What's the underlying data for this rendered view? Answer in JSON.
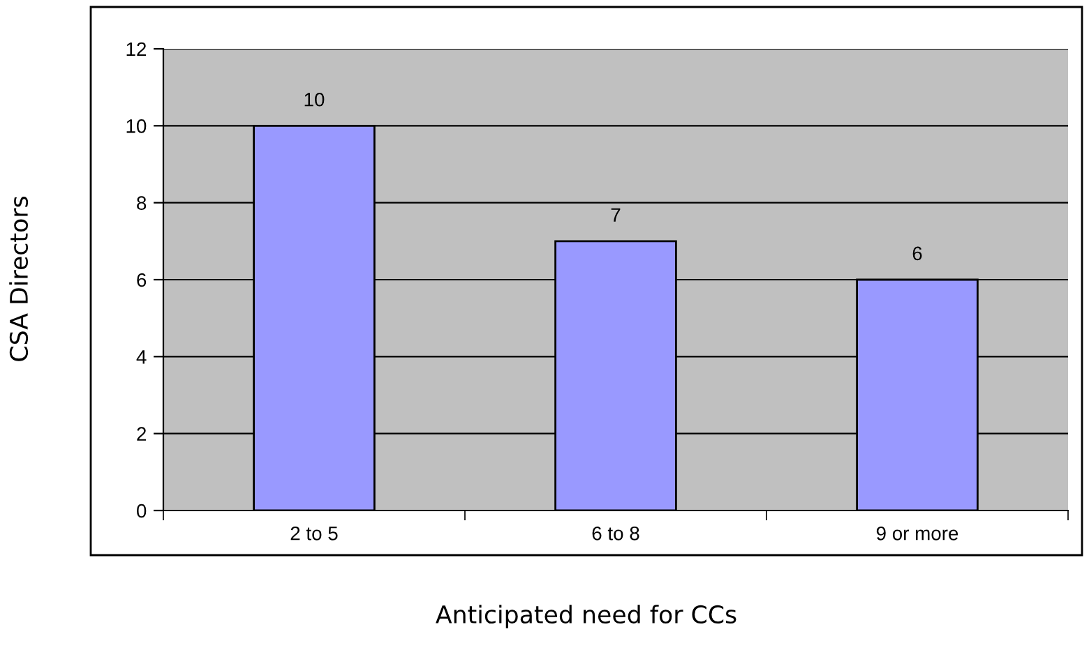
{
  "chart_data": {
    "type": "bar",
    "xlabel": "Anticipated need for CCs",
    "ylabel": "CSA Directors",
    "categories": [
      "2 to 5",
      "6 to 8",
      "9 or more"
    ],
    "values": [
      10,
      7,
      6
    ],
    "color": "#9999ff",
    "ylim": [
      0,
      12
    ],
    "yticks": [
      0,
      2,
      4,
      6,
      8,
      10,
      12
    ],
    "grid": "y",
    "data_labels": true
  }
}
